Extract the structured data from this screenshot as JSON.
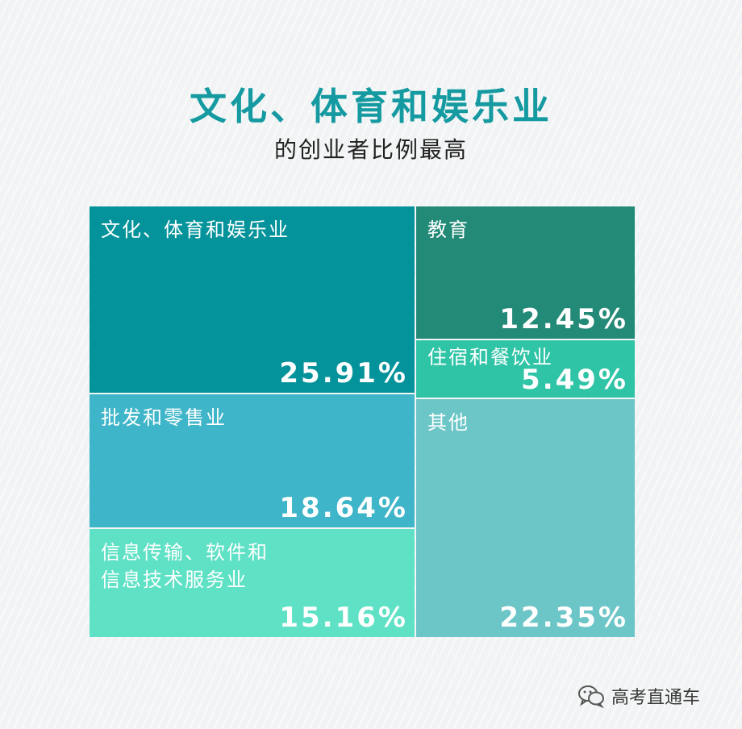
{
  "header": {
    "title": "文化、体育和娱乐业",
    "subtitle": "的创业者比例最高"
  },
  "colors": {
    "title": "#149aa0",
    "label": "#ffffff",
    "文化、体育和娱乐业": "#05939b",
    "教育": "#228a77",
    "住宿和餐饮业": "#2fc4a6",
    "批发和零售业": "#3eb5c8",
    "信息传输、软件和信息技术服务业": "#5ee1c4",
    "其他": "#6cc5c6"
  },
  "chart_data": {
    "type": "treemap",
    "title": "文化、体育和娱乐业",
    "subtitle": "的创业者比例最高",
    "unit": "%",
    "items": [
      {
        "name": "文化、体育和娱乐业",
        "label_lines": [
          "文化、体育和娱乐业"
        ],
        "value": 25.91,
        "value_label": "25.91%"
      },
      {
        "name": "批发和零售业",
        "label_lines": [
          "批发和零售业"
        ],
        "value": 18.64,
        "value_label": "18.64%"
      },
      {
        "name": "信息传输、软件和信息技术服务业",
        "label_lines": [
          "信息传输、软件和",
          "信息技术服务业"
        ],
        "value": 15.16,
        "value_label": "15.16%"
      },
      {
        "name": "教育",
        "label_lines": [
          "教育"
        ],
        "value": 12.45,
        "value_label": "12.45%"
      },
      {
        "name": "住宿和餐饮业",
        "label_lines": [
          "住宿和餐饮业"
        ],
        "value": 5.49,
        "value_label": "5.49%"
      },
      {
        "name": "其他",
        "label_lines": [
          "其他"
        ],
        "value": 22.35,
        "value_label": "22.35%"
      }
    ],
    "columns": [
      [
        "文化、体育和娱乐业",
        "批发和零售业",
        "信息传输、软件和信息技术服务业"
      ],
      [
        "教育",
        "住宿和餐饮业",
        "其他"
      ]
    ]
  },
  "watermark": {
    "text": "高考直通车"
  }
}
